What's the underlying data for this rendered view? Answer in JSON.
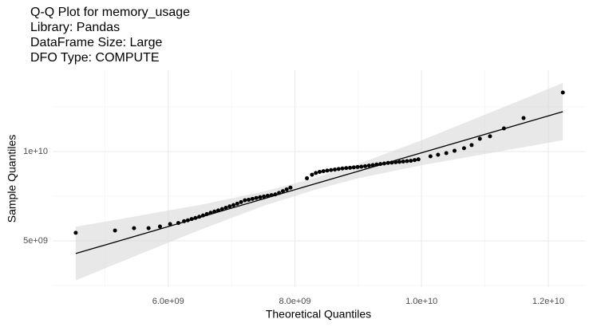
{
  "chart_data": {
    "type": "qq",
    "title": [
      "Q-Q Plot for memory_usage",
      "Library: Pandas",
      "DataFrame Size: Large",
      "DFO Type: COMPUTE"
    ],
    "xlabel": "Theoretical Quantiles",
    "ylabel": "Sample Quantiles",
    "xlim": [
      4176000000.0,
      12580000000.0
    ],
    "ylim": [
      2410000000.0,
      14550000000.0
    ],
    "xticks": [
      {
        "value": 6000000000.0,
        "label": "6.0e+09"
      },
      {
        "value": 8000000000.0,
        "label": "8.0e+09"
      },
      {
        "value": 10000000000.0,
        "label": "1.0e+10"
      },
      {
        "value": 12000000000.0,
        "label": "1.2e+10"
      }
    ],
    "yticks": [
      {
        "value": 5000000000.0,
        "label": "5e+09"
      },
      {
        "value": 10000000000.0,
        "label": "1e+10"
      }
    ],
    "x_minor_ticks": [
      5000000000.0,
      7000000000.0,
      9000000000.0,
      11000000000.0
    ],
    "y_minor_ticks": [
      2500000000.0,
      7500000000.0,
      12500000000.0
    ],
    "grid": true,
    "color": "#000000",
    "band_color": "#d9d9d9",
    "x": [
      4540000000.0,
      5160000000.0,
      5460000000.0,
      5690000000.0,
      5870000000.0,
      6030000000.0,
      6160000000.0,
      6250000000.0,
      6310000000.0,
      6370000000.0,
      6430000000.0,
      6490000000.0,
      6550000000.0,
      6610000000.0,
      6670000000.0,
      6730000000.0,
      6790000000.0,
      6850000000.0,
      6910000000.0,
      6970000000.0,
      7030000000.0,
      7090000000.0,
      7150000000.0,
      7210000000.0,
      7270000000.0,
      7330000000.0,
      7390000000.0,
      7450000000.0,
      7510000000.0,
      7570000000.0,
      7630000000.0,
      7690000000.0,
      7750000000.0,
      7810000000.0,
      7870000000.0,
      7930000000.0,
      8190000000.0,
      8270000000.0,
      8330000000.0,
      8390000000.0,
      8450000000.0,
      8510000000.0,
      8570000000.0,
      8630000000.0,
      8690000000.0,
      8750000000.0,
      8810000000.0,
      8870000000.0,
      8930000000.0,
      8990000000.0,
      9050000000.0,
      9110000000.0,
      9170000000.0,
      9230000000.0,
      9290000000.0,
      9350000000.0,
      9410000000.0,
      9470000000.0,
      9530000000.0,
      9590000000.0,
      9650000000.0,
      9710000000.0,
      9770000000.0,
      9830000000.0,
      9890000000.0,
      9950000000.0,
      10140000000.0,
      10260000000.0,
      10390000000.0,
      10520000000.0,
      10670000000.0,
      10790000000.0,
      10920000000.0,
      11080000000.0,
      11300000000.0,
      11610000000.0,
      12230000000.0
    ],
    "values": [
      5450000000.0,
      5580000000.0,
      5710000000.0,
      5710000000.0,
      5800000000.0,
      5940000000.0,
      6000000000.0,
      6100000000.0,
      6150000000.0,
      6220000000.0,
      6280000000.0,
      6350000000.0,
      6420000000.0,
      6500000000.0,
      6570000000.0,
      6640000000.0,
      6700000000.0,
      6780000000.0,
      6850000000.0,
      6930000000.0,
      7000000000.0,
      7080000000.0,
      7170000000.0,
      7270000000.0,
      7300000000.0,
      7350000000.0,
      7400000000.0,
      7440000000.0,
      7480000000.0,
      7520000000.0,
      7560000000.0,
      7600000000.0,
      7680000000.0,
      7780000000.0,
      7880000000.0,
      7980000000.0,
      8500000000.0,
      8700000000.0,
      8800000000.0,
      8860000000.0,
      8900000000.0,
      8930000000.0,
      8960000000.0,
      8990000000.0,
      9020000000.0,
      9050000000.0,
      9070000000.0,
      9090000000.0,
      9110000000.0,
      9130000000.0,
      9150000000.0,
      9180000000.0,
      9210000000.0,
      9240000000.0,
      9270000000.0,
      9300000000.0,
      9330000000.0,
      9360000000.0,
      9380000000.0,
      9400000000.0,
      9420000000.0,
      9440000000.0,
      9460000000.0,
      9480000000.0,
      9520000000.0,
      9560000000.0,
      9730000000.0,
      9820000000.0,
      9910000000.0,
      10040000000.0,
      10180000000.0,
      10360000000.0,
      10710000000.0,
      10850000000.0,
      11290000000.0,
      11870000000.0,
      13300000000.0
    ],
    "fit": {
      "x": [
        4540000000.0,
        12230000000.0
      ],
      "y": [
        4290000000.0,
        12230000000.0
      ]
    },
    "band": {
      "x": [
        4540000000.0,
        5500000000.0,
        6500000000.0,
        7500000000.0,
        8300000000.0,
        9000000000.0,
        10000000000.0,
        11000000000.0,
        12230000000.0
      ],
      "lower": [
        2790000000.0,
        4180000000.0,
        5610000000.0,
        6950000000.0,
        7840000000.0,
        8500000000.0,
        9230000000.0,
        9860000000.0,
        10630000000.0
      ],
      "upper": [
        5790000000.0,
        6380000000.0,
        7010000000.0,
        7750000000.0,
        8500000000.0,
        9300000000.0,
        10630000000.0,
        12060000000.0,
        13830000000.0
      ]
    }
  }
}
